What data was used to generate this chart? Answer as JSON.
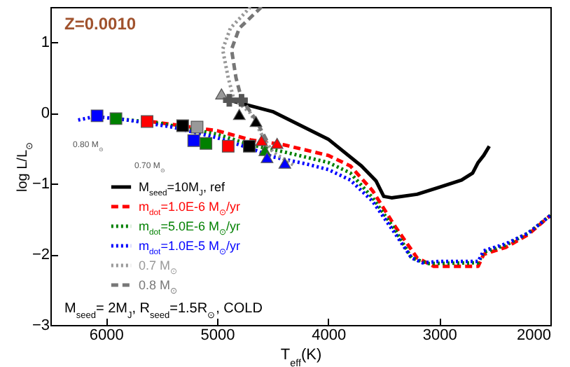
{
  "chart_data": {
    "type": "line",
    "xlabel": "T$_{eff}$(K)",
    "ylabel": "log L/L$_{⊙}$",
    "xlim": [
      6500,
      2000
    ],
    "ylim": [
      -3,
      1.5
    ],
    "xticks": [
      6000,
      5000,
      4000,
      3000,
      2000
    ],
    "yticks": [
      {
        "value": -3,
        "label": "−3"
      },
      {
        "value": -2,
        "label": "−2"
      },
      {
        "value": -1,
        "label": "−1"
      },
      0,
      1
    ],
    "legend": "bottom left",
    "grid": false,
    "series": [
      {
        "name": "M$_{seed}$=10M$_{J}$, ref",
        "color": "#000000",
        "line_style": "solid",
        "x": [
          4890,
          4500,
          4000,
          3700,
          3570,
          3500,
          3430,
          3200,
          3000,
          2800,
          2700,
          2650,
          2600,
          2550
        ],
        "values": [
          0.18,
          0.02,
          -0.37,
          -0.75,
          -0.96,
          -1.18,
          -1.2,
          -1.15,
          -1.05,
          -0.95,
          -0.85,
          -0.7,
          -0.6,
          -0.47
        ]
      },
      {
        "name": "m$_{dot}$=1.0E-6 M$_{⊙}$/yr",
        "color": "#ff0000",
        "line_style": "dashed",
        "x": [
          5600,
          5000,
          4700,
          4400,
          4000,
          3800,
          3600,
          3400,
          3200,
          3050,
          2650,
          2600,
          2400,
          2200,
          2000
        ],
        "values": [
          -0.12,
          -0.25,
          -0.38,
          -0.45,
          -0.6,
          -0.75,
          -1.1,
          -1.6,
          -2.05,
          -2.17,
          -2.17,
          -2.0,
          -1.9,
          -1.72,
          -1.45
        ]
      },
      {
        "name": "m$_{dot}$=5.0E-6 M$_{⊙}$/yr",
        "color": "#008000",
        "line_style": "dotted",
        "x": [
          5900,
          5500,
          5000,
          4700,
          4400,
          4000,
          3800,
          3600,
          3400,
          3250,
          3100,
          2650,
          2600,
          2400,
          2200,
          2000
        ],
        "values": [
          -0.08,
          -0.15,
          -0.3,
          -0.45,
          -0.55,
          -0.7,
          -0.85,
          -1.2,
          -1.65,
          -2.05,
          -2.13,
          -2.12,
          -1.97,
          -1.87,
          -1.7,
          -1.45
        ]
      },
      {
        "name": "m$_{dot}$=1.0E-5 M$_{⊙}$/yr",
        "color": "#0000ff",
        "line_style": "dotted",
        "x": [
          6250,
          6100,
          5800,
          5400,
          5000,
          4700,
          4500,
          4200,
          4000,
          3800,
          3600,
          3400,
          3250,
          3150,
          3000,
          2650,
          2600,
          2400,
          2200,
          2000
        ],
        "values": [
          -0.1,
          -0.05,
          -0.1,
          -0.2,
          -0.35,
          -0.5,
          -0.62,
          -0.72,
          -0.8,
          -0.95,
          -1.25,
          -1.7,
          -2.05,
          -2.12,
          -2.1,
          -2.1,
          -1.95,
          -1.85,
          -1.7,
          -1.45
        ]
      },
      {
        "name": "0.7 M$_{⊙}$",
        "color": "#999999",
        "line_style": "dotted",
        "x": [
          4700,
          4880,
          4950,
          4900,
          4850,
          4700,
          4600,
          4500,
          4300
        ],
        "values": [
          1.5,
          1.2,
          0.9,
          0.5,
          0.2,
          0.0,
          -0.3,
          -0.55,
          -0.75
        ]
      },
      {
        "name": "0.8 M$_{⊙}$",
        "color": "#777777",
        "line_style": "dashed",
        "x": [
          4600,
          4800,
          4870,
          4830,
          4780,
          4650,
          4550
        ],
        "values": [
          1.5,
          1.2,
          0.9,
          0.5,
          0.2,
          -0.1,
          -0.4
        ]
      },
      {
        "type": "scatter",
        "marker": "square",
        "x": [
          6080,
          5910,
          5630,
          5310,
          5180,
          5210,
          5100,
          4900,
          4710
        ],
        "values": [
          -0.04,
          -0.08,
          -0.12,
          -0.18,
          -0.2,
          -0.39,
          -0.43,
          -0.47,
          -0.47
        ],
        "colors": [
          "#0000ff",
          "#008000",
          "#ff0000",
          "#000000",
          "#999999",
          "#0000ff",
          "#008000",
          "#ff0000",
          "#000000"
        ]
      },
      {
        "type": "scatter",
        "marker": "triangle",
        "x": [
          4960,
          4800,
          4650,
          4600,
          4460,
          4570,
          4550,
          4390
        ],
        "values": [
          0.27,
          -0.02,
          -0.12,
          -0.39,
          -0.43,
          -0.53,
          -0.63,
          -0.71
        ],
        "colors": [
          "#999999",
          "#000000",
          "#000000",
          "#ff0000",
          "#ff0000",
          "#008000",
          "#0000ff",
          "#0000ff"
        ]
      },
      {
        "type": "scatter",
        "marker": "cross",
        "x": [
          4890,
          4780
        ],
        "values": [
          0.18,
          0.18
        ],
        "colors": [
          "#555555",
          "#555555"
        ]
      }
    ],
    "annotations": [
      "Z=0.0010",
      "M$_{seed}$= 2M$_{J}$, R$_{seed}$=1.5R$_{⊙}$, COLD",
      "0.80 M$_{⊙}$",
      "0.70 M$_{⊙}$"
    ]
  }
}
